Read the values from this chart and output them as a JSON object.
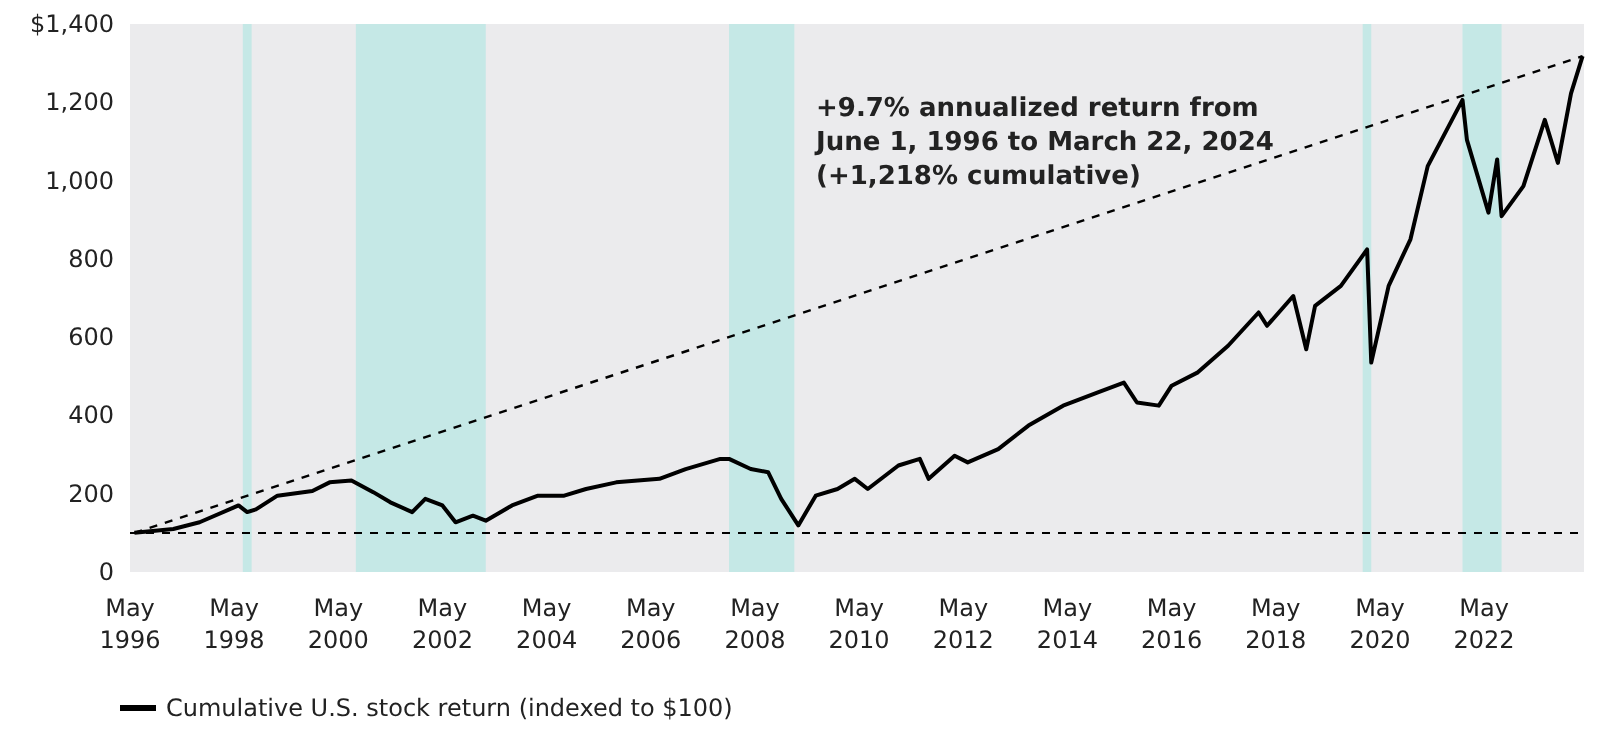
{
  "chart_data": {
    "type": "line",
    "annotations": [
      "+9.7% annualized return from\nJune 1, 1996 to March 22, 2024\n(+1,218% cumulative)"
    ],
    "x": [
      "1996-06-01",
      "1997-03",
      "1997-09",
      "1998-06",
      "1998-08",
      "1998-10",
      "1999-03",
      "1999-11",
      "2000-03",
      "2000-08",
      "2001-01",
      "2001-05",
      "2001-10",
      "2002-01",
      "2002-05",
      "2002-08",
      "2002-12",
      "2003-03",
      "2003-09",
      "2004-03",
      "2004-09",
      "2005-02",
      "2005-09",
      "2006-07",
      "2007-01",
      "2007-09",
      "2007-11",
      "2008-04",
      "2008-08",
      "2008-11",
      "2009-03",
      "2009-07",
      "2009-12",
      "2010-04",
      "2010-07",
      "2011-02",
      "2011-07",
      "2011-09",
      "2012-03",
      "2012-06",
      "2013-01",
      "2013-08",
      "2014-04",
      "2014-12",
      "2015-06",
      "2015-09",
      "2016-02",
      "2016-05",
      "2016-11",
      "2017-06",
      "2018-01",
      "2018-03",
      "2018-09",
      "2018-12",
      "2019-02",
      "2019-08",
      "2020-02",
      "2020-03",
      "2020-07",
      "2020-12",
      "2021-04",
      "2021-10",
      "2021-12",
      "2022-01",
      "2022-06",
      "2022-08",
      "2022-09",
      "2023-02",
      "2023-07",
      "2023-10",
      "2024-01",
      "2024-03-22"
    ],
    "series": [
      {
        "name": "Cumulative U.S. stock return (indexed to $100)",
        "color": "#000000",
        "values": [
          100,
          110,
          127,
          170,
          153,
          160,
          195,
          207,
          229,
          234,
          204,
          178,
          153,
          187,
          170,
          127,
          144,
          131,
          170,
          195,
          195,
          212,
          229,
          238,
          263,
          289,
          289,
          263,
          255,
          187,
          119,
          195,
          212,
          238,
          212,
          272,
          289,
          238,
          297,
          280,
          314,
          374,
          425,
          459,
          484,
          433,
          425,
          476,
          510,
          578,
          663,
          629,
          705,
          569,
          680,
          731,
          824,
          535,
          731,
          850,
          1037,
          1164,
          1206,
          1104,
          918,
          1054,
          909,
          986,
          1155,
          1045,
          1223,
          1318
        ]
      },
      {
        "type": "line",
        "color": "#000000",
        "line_style": "dashed",
        "x": [
          "1996-06-01",
          "2024-03-22"
        ],
        "values": [
          100,
          1318
        ]
      }
    ],
    "xlim": [
      "1996-05",
      "2024-04"
    ],
    "xticks": [
      {
        "value": "1996-05",
        "label": "May\n1996"
      },
      {
        "value": "1998-05",
        "label": "May\n1998"
      },
      {
        "value": "2000-05",
        "label": "May\n2000"
      },
      {
        "value": "2002-05",
        "label": "May\n2002"
      },
      {
        "value": "2004-05",
        "label": "May\n2004"
      },
      {
        "value": "2006-05",
        "label": "May\n2006"
      },
      {
        "value": "2008-05",
        "label": "May\n2008"
      },
      {
        "value": "2010-05",
        "label": "May\n2010"
      },
      {
        "value": "2012-05",
        "label": "May\n2012"
      },
      {
        "value": "2014-05",
        "label": "May\n2014"
      },
      {
        "value": "2016-05",
        "label": "May\n2016"
      },
      {
        "value": "2018-05",
        "label": "May\n2018"
      },
      {
        "value": "2020-05",
        "label": "May\n2020"
      },
      {
        "value": "2022-05",
        "label": "May\n2022"
      }
    ],
    "ylim": [
      0,
      1400
    ],
    "yticks": [
      0,
      {
        "value": 200,
        "label": "200"
      },
      {
        "value": 400,
        "label": "400"
      },
      {
        "value": 600,
        "label": "600"
      },
      {
        "value": 800,
        "label": "800"
      },
      {
        "value": 1000,
        "label": "1,000"
      },
      {
        "value": 1200,
        "label": "1,200"
      },
      {
        "value": 1400,
        "label": "$1,400"
      }
    ],
    "ref_lines": [
      {
        "axis": "y",
        "value": 100,
        "color": "#000000",
        "line_style": "dashed"
      }
    ],
    "bands": [
      {
        "axis": "x",
        "from": "1998-07",
        "to": "1998-09",
        "color": "#c5e8e6"
      },
      {
        "axis": "x",
        "from": "2000-09",
        "to": "2003-03",
        "color": "#c5e8e6"
      },
      {
        "axis": "x",
        "from": "2007-11",
        "to": "2009-02",
        "color": "#c5e8e6"
      },
      {
        "axis": "x",
        "from": "2020-01",
        "to": "2020-03",
        "color": "#c5e8e6"
      },
      {
        "axis": "x",
        "from": "2021-12",
        "to": "2022-09",
        "color": "#c5e8e6"
      }
    ],
    "grid": false,
    "legend": "bottom left",
    "marker": "none",
    "line_style": "solid"
  }
}
